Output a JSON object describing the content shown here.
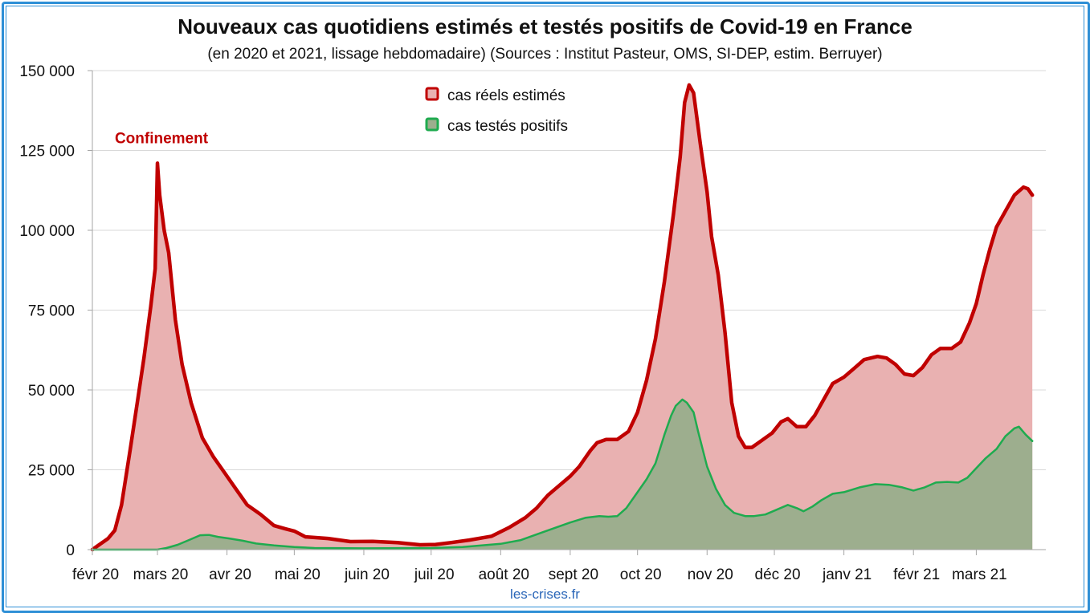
{
  "page": {
    "source_label": "les-crises.fr"
  },
  "chart_data": {
    "type": "area",
    "title": "Nouveaux cas quotidiens estimés et testés positifs de Covid-19 en France",
    "subtitle": "(en 2020 et 2021, lissage hebdomadaire) (Sources : Institut Pasteur, OMS, SI-DEP, estim. Berruyer)",
    "xlabel": "",
    "ylabel": "",
    "ylim": [
      0,
      150000
    ],
    "y_ticks": [
      0,
      25000,
      50000,
      75000,
      100000,
      125000,
      150000
    ],
    "y_tick_labels": [
      "0",
      "25 000",
      "50 000",
      "75 000",
      "100 000",
      "125 000",
      "150 000"
    ],
    "x_range": [
      "2020-02-01",
      "2021-04-01"
    ],
    "x_ticks": [
      {
        "date": "2020-02-01",
        "label": "févr 20"
      },
      {
        "date": "2020-03-01",
        "label": "mars 20"
      },
      {
        "date": "2020-04-01",
        "label": "avr 20"
      },
      {
        "date": "2020-05-01",
        "label": "mai 20"
      },
      {
        "date": "2020-06-01",
        "label": "juin 20"
      },
      {
        "date": "2020-07-01",
        "label": "juil 20"
      },
      {
        "date": "2020-08-01",
        "label": "août 20"
      },
      {
        "date": "2020-09-01",
        "label": "sept 20"
      },
      {
        "date": "2020-10-01",
        "label": "oct 20"
      },
      {
        "date": "2020-11-01",
        "label": "nov 20"
      },
      {
        "date": "2020-12-01",
        "label": "déc 20"
      },
      {
        "date": "2021-01-01",
        "label": "janv 21"
      },
      {
        "date": "2021-02-01",
        "label": "févr 21"
      },
      {
        "date": "2021-03-01",
        "label": "mars 21"
      }
    ],
    "grid": true,
    "legend_position": "top-center",
    "annotations": [
      {
        "text": "Confinement",
        "date": "2020-03-01",
        "y": 129000
      }
    ],
    "series": [
      {
        "name": "cas réels estimés",
        "line_color": "#c00000",
        "fill_color": "#e9b1b1",
        "points": [
          [
            "2020-02-01",
            0
          ],
          [
            "2020-02-04",
            1500
          ],
          [
            "2020-02-08",
            3500
          ],
          [
            "2020-02-11",
            6000
          ],
          [
            "2020-02-14",
            14000
          ],
          [
            "2020-02-18",
            32000
          ],
          [
            "2020-02-21",
            46000
          ],
          [
            "2020-02-24",
            60000
          ],
          [
            "2020-02-27",
            76000
          ],
          [
            "2020-02-29",
            88000
          ],
          [
            "2020-03-01",
            121000
          ],
          [
            "2020-03-02",
            111000
          ],
          [
            "2020-03-04",
            100000
          ],
          [
            "2020-03-06",
            93000
          ],
          [
            "2020-03-09",
            72000
          ],
          [
            "2020-03-12",
            58000
          ],
          [
            "2020-03-16",
            46000
          ],
          [
            "2020-03-21",
            35000
          ],
          [
            "2020-03-26",
            29000
          ],
          [
            "2020-03-31",
            24000
          ],
          [
            "2020-04-05",
            19000
          ],
          [
            "2020-04-10",
            14000
          ],
          [
            "2020-04-16",
            11000
          ],
          [
            "2020-04-22",
            7500
          ],
          [
            "2020-04-27",
            6500
          ],
          [
            "2020-05-01",
            5800
          ],
          [
            "2020-05-06",
            4000
          ],
          [
            "2020-05-16",
            3500
          ],
          [
            "2020-05-26",
            2500
          ],
          [
            "2020-06-05",
            2600
          ],
          [
            "2020-06-16",
            2200
          ],
          [
            "2020-06-26",
            1500
          ],
          [
            "2020-07-03",
            1600
          ],
          [
            "2020-07-10",
            2200
          ],
          [
            "2020-07-18",
            3000
          ],
          [
            "2020-07-28",
            4200
          ],
          [
            "2020-08-05",
            7000
          ],
          [
            "2020-08-12",
            10000
          ],
          [
            "2020-08-17",
            13000
          ],
          [
            "2020-08-22",
            17000
          ],
          [
            "2020-08-27",
            20000
          ],
          [
            "2020-09-01",
            23000
          ],
          [
            "2020-09-05",
            26000
          ],
          [
            "2020-09-10",
            31000
          ],
          [
            "2020-09-13",
            33500
          ],
          [
            "2020-09-17",
            34500
          ],
          [
            "2020-09-22",
            34500
          ],
          [
            "2020-09-27",
            37000
          ],
          [
            "2020-10-01",
            43000
          ],
          [
            "2020-10-05",
            53000
          ],
          [
            "2020-10-09",
            66000
          ],
          [
            "2020-10-13",
            84000
          ],
          [
            "2020-10-17",
            105000
          ],
          [
            "2020-10-20",
            123000
          ],
          [
            "2020-10-22",
            140000
          ],
          [
            "2020-10-24",
            145500
          ],
          [
            "2020-10-26",
            143000
          ],
          [
            "2020-10-29",
            127000
          ],
          [
            "2020-11-01",
            112000
          ],
          [
            "2020-11-03",
            98000
          ],
          [
            "2020-11-06",
            86000
          ],
          [
            "2020-11-09",
            68000
          ],
          [
            "2020-11-12",
            46000
          ],
          [
            "2020-11-15",
            35500
          ],
          [
            "2020-11-18",
            32000
          ],
          [
            "2020-11-21",
            32000
          ],
          [
            "2020-11-25",
            34000
          ],
          [
            "2020-11-30",
            36500
          ],
          [
            "2020-12-04",
            40000
          ],
          [
            "2020-12-07",
            41000
          ],
          [
            "2020-12-11",
            38500
          ],
          [
            "2020-12-15",
            38500
          ],
          [
            "2020-12-19",
            42000
          ],
          [
            "2020-12-23",
            47000
          ],
          [
            "2020-12-27",
            52000
          ],
          [
            "2021-01-01",
            54000
          ],
          [
            "2021-01-06",
            57000
          ],
          [
            "2021-01-10",
            59500
          ],
          [
            "2021-01-16",
            60500
          ],
          [
            "2021-01-20",
            60000
          ],
          [
            "2021-01-24",
            58000
          ],
          [
            "2021-01-28",
            55000
          ],
          [
            "2021-02-01",
            54500
          ],
          [
            "2021-02-05",
            57000
          ],
          [
            "2021-02-09",
            61000
          ],
          [
            "2021-02-13",
            63000
          ],
          [
            "2021-02-18",
            63000
          ],
          [
            "2021-02-22",
            65000
          ],
          [
            "2021-02-26",
            71000
          ],
          [
            "2021-03-01",
            77000
          ],
          [
            "2021-03-04",
            86000
          ],
          [
            "2021-03-07",
            94000
          ],
          [
            "2021-03-10",
            101000
          ],
          [
            "2021-03-14",
            106000
          ],
          [
            "2021-03-18",
            111000
          ],
          [
            "2021-03-22",
            113500
          ],
          [
            "2021-03-24",
            113000
          ],
          [
            "2021-03-26",
            111000
          ]
        ]
      },
      {
        "name": "cas testés positifs",
        "line_color": "#1fab4f",
        "fill_color": "#9dae8e",
        "points": [
          [
            "2020-02-01",
            0
          ],
          [
            "2020-03-01",
            0
          ],
          [
            "2020-03-05",
            500
          ],
          [
            "2020-03-10",
            1500
          ],
          [
            "2020-03-15",
            3000
          ],
          [
            "2020-03-20",
            4500
          ],
          [
            "2020-03-24",
            4600
          ],
          [
            "2020-03-28",
            4000
          ],
          [
            "2020-04-02",
            3500
          ],
          [
            "2020-04-08",
            2800
          ],
          [
            "2020-04-14",
            1900
          ],
          [
            "2020-04-22",
            1300
          ],
          [
            "2020-05-01",
            800
          ],
          [
            "2020-05-10",
            500
          ],
          [
            "2020-06-01",
            400
          ],
          [
            "2020-07-01",
            500
          ],
          [
            "2020-07-15",
            800
          ],
          [
            "2020-08-01",
            1800
          ],
          [
            "2020-08-10",
            3000
          ],
          [
            "2020-08-20",
            5500
          ],
          [
            "2020-09-01",
            8500
          ],
          [
            "2020-09-08",
            10000
          ],
          [
            "2020-09-14",
            10500
          ],
          [
            "2020-09-18",
            10300
          ],
          [
            "2020-09-22",
            10500
          ],
          [
            "2020-09-26",
            13000
          ],
          [
            "2020-10-01",
            18000
          ],
          [
            "2020-10-05",
            22000
          ],
          [
            "2020-10-09",
            27000
          ],
          [
            "2020-10-13",
            36000
          ],
          [
            "2020-10-16",
            42000
          ],
          [
            "2020-10-18",
            45000
          ],
          [
            "2020-10-21",
            47000
          ],
          [
            "2020-10-23",
            46000
          ],
          [
            "2020-10-26",
            43000
          ],
          [
            "2020-10-28",
            37000
          ],
          [
            "2020-11-01",
            26000
          ],
          [
            "2020-11-05",
            19000
          ],
          [
            "2020-11-09",
            14000
          ],
          [
            "2020-11-13",
            11500
          ],
          [
            "2020-11-18",
            10500
          ],
          [
            "2020-11-22",
            10500
          ],
          [
            "2020-11-27",
            11000
          ],
          [
            "2020-12-02",
            12500
          ],
          [
            "2020-12-07",
            14000
          ],
          [
            "2020-12-11",
            13000
          ],
          [
            "2020-12-14",
            12000
          ],
          [
            "2020-12-18",
            13500
          ],
          [
            "2020-12-22",
            15500
          ],
          [
            "2020-12-27",
            17500
          ],
          [
            "2021-01-01",
            18000
          ],
          [
            "2021-01-08",
            19500
          ],
          [
            "2021-01-15",
            20500
          ],
          [
            "2021-01-21",
            20300
          ],
          [
            "2021-01-27",
            19500
          ],
          [
            "2021-02-01",
            18500
          ],
          [
            "2021-02-06",
            19500
          ],
          [
            "2021-02-11",
            21000
          ],
          [
            "2021-02-16",
            21200
          ],
          [
            "2021-02-21",
            21000
          ],
          [
            "2021-02-25",
            22500
          ],
          [
            "2021-03-01",
            25500
          ],
          [
            "2021-03-05",
            28500
          ],
          [
            "2021-03-10",
            31500
          ],
          [
            "2021-03-14",
            35500
          ],
          [
            "2021-03-18",
            38000
          ],
          [
            "2021-03-20",
            38500
          ],
          [
            "2021-03-23",
            36000
          ],
          [
            "2021-03-26",
            34000
          ]
        ]
      }
    ]
  }
}
